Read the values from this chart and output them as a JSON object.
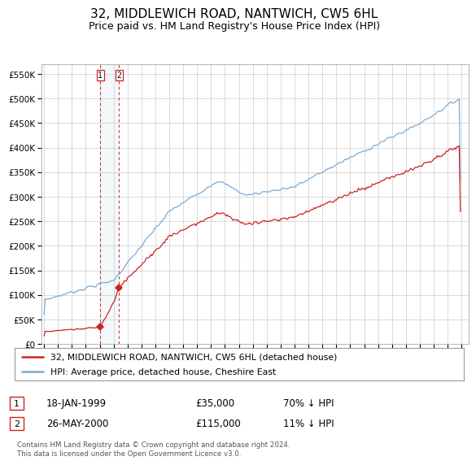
{
  "title": "32, MIDDLEWICH ROAD, NANTWICH, CW5 6HL",
  "subtitle": "Price paid vs. HM Land Registry's House Price Index (HPI)",
  "title_fontsize": 11,
  "subtitle_fontsize": 9,
  "ylim": [
    0,
    570000
  ],
  "yticks": [
    0,
    50000,
    100000,
    150000,
    200000,
    250000,
    300000,
    350000,
    400000,
    450000,
    500000,
    550000
  ],
  "ytick_labels": [
    "£0",
    "£50K",
    "£100K",
    "£150K",
    "£200K",
    "£250K",
    "£300K",
    "£350K",
    "£400K",
    "£450K",
    "£500K",
    "£550K"
  ],
  "hpi_color": "#7aacd6",
  "price_color": "#cc2222",
  "sale1_date_num": 1999.04,
  "sale1_price": 35000,
  "sale2_date_num": 2000.38,
  "sale2_price": 115000,
  "legend_line1": "32, MIDDLEWICH ROAD, NANTWICH, CW5 6HL (detached house)",
  "legend_line2": "HPI: Average price, detached house, Cheshire East",
  "annotation1_date": "18-JAN-1999",
  "annotation1_price": "£35,000",
  "annotation1_hpi": "70% ↓ HPI",
  "annotation2_date": "26-MAY-2000",
  "annotation2_price": "£115,000",
  "annotation2_hpi": "11% ↓ HPI",
  "footer": "Contains HM Land Registry data © Crown copyright and database right 2024.\nThis data is licensed under the Open Government Licence v3.0.",
  "background_color": "#ffffff",
  "grid_color": "#cccccc",
  "xlim_start": 1994.8,
  "xlim_end": 2025.5
}
